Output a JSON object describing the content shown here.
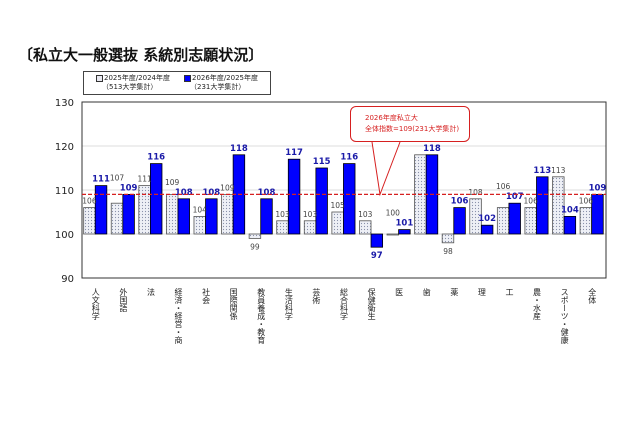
{
  "title": "〔私立大一般選抜 系統別志願状況〕",
  "legend": {
    "series1_line1": "2025年度/2024年度",
    "series1_line2": "（513大学集計）",
    "series2_line1": "2026年度/2025年度",
    "series2_line2": "（231大学集計）"
  },
  "callout": {
    "line1": "2026年度私立大",
    "line2": "全体指数=109(231大学集計)"
  },
  "chart_data": {
    "type": "bar",
    "categories": [
      "人文科学",
      "外国語",
      "法",
      "経済・経営・商",
      "社会",
      "国際関係",
      "教員養成・教育",
      "生活科学",
      "芸術",
      "総合科学",
      "保健衛生",
      "医",
      "歯",
      "薬",
      "理",
      "工",
      "農・水産",
      "スポーツ・健康",
      "全体"
    ],
    "series": [
      {
        "name": "2025年度/2024年度（513大学集計）",
        "color": "#e8e8f0",
        "pattern": "dotted",
        "values": [
          106,
          107,
          111,
          109,
          104,
          109,
          99,
          103,
          103,
          105,
          103,
          100,
          118,
          98,
          108,
          106,
          106,
          113,
          106
        ]
      },
      {
        "name": "2026年度/2025年度（231大学集計）",
        "color": "#0000ff",
        "values": [
          111,
          109,
          116,
          108,
          108,
          118,
          108,
          117,
          115,
          116,
          97,
          101,
          118,
          106,
          102,
          107,
          113,
          104,
          109
        ]
      }
    ],
    "baseline": 100,
    "reference_line": {
      "value": 109,
      "color": "#d62020",
      "style": "dashed"
    },
    "ylim": [
      90,
      130
    ],
    "yticks": [
      90,
      100,
      110,
      120,
      130
    ],
    "grid": true,
    "legend_position": "top-left"
  }
}
